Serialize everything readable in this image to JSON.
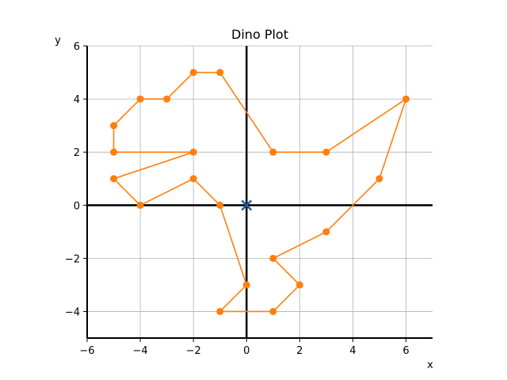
{
  "chart_data": {
    "type": "line",
    "title": "Dino Plot",
    "xlabel": "x",
    "ylabel": "y",
    "xlim": [
      -6,
      7
    ],
    "ylim": [
      -5,
      6
    ],
    "xticks": [
      -6,
      -4,
      -2,
      0,
      2,
      4,
      6
    ],
    "yticks": [
      -4,
      -2,
      0,
      2,
      4,
      6
    ],
    "xtick_labels": [
      "−6",
      "−4",
      "−2",
      "0",
      "2",
      "4",
      "6"
    ],
    "ytick_labels": [
      "−4",
      "−2",
      "0",
      "2",
      "4",
      "6"
    ],
    "grid": true,
    "series": [
      {
        "color": "#ff7f0e",
        "marker": "circle",
        "x": [
          1,
          3,
          6,
          5,
          3,
          1,
          2,
          1,
          -1,
          0,
          -1,
          -2,
          -4,
          -5,
          -2,
          -5,
          -5,
          -4,
          -3,
          -2,
          -1,
          1
        ],
        "y": [
          2,
          2,
          4,
          1,
          -1,
          -2,
          -3,
          -4,
          -4,
          -3,
          0,
          1,
          0,
          1,
          2,
          2,
          3,
          4,
          4,
          5,
          5,
          2
        ]
      }
    ],
    "markers": [
      {
        "x": 0,
        "y": 0,
        "symbol": "x",
        "color": "#1f5f99"
      }
    ]
  }
}
